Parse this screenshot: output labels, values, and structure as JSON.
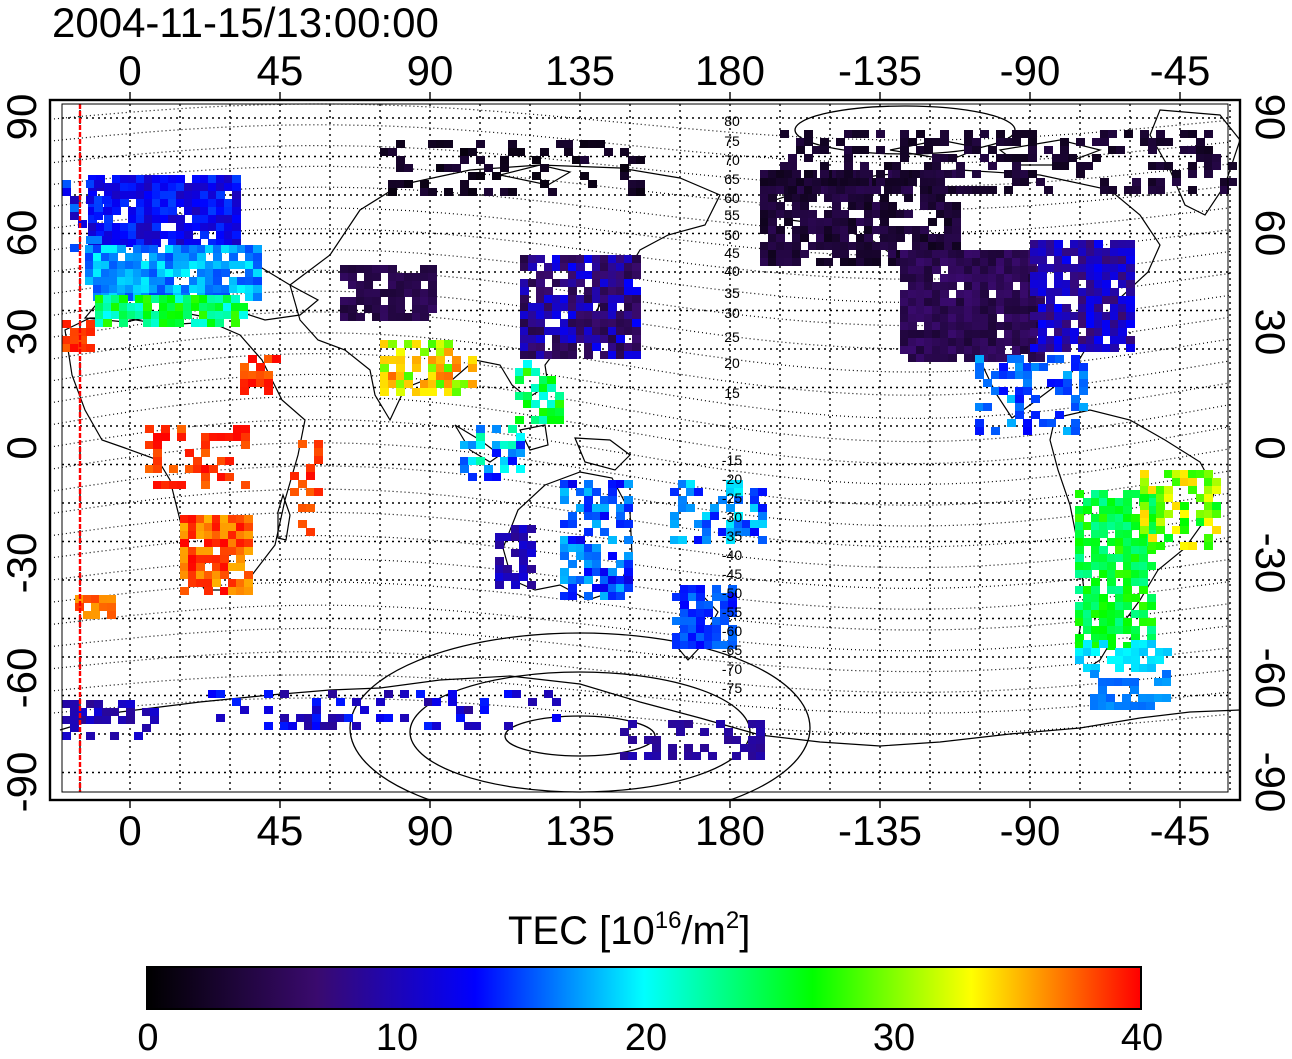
{
  "timestamp": "2004-11-15/13:00:00",
  "map": {
    "lon_ticks": [
      "0",
      "45",
      "90",
      "135",
      "180",
      "-135",
      "-90",
      "-45"
    ],
    "lat_ticks_left": [
      "90",
      "60",
      "30",
      "0",
      "-30",
      "-60",
      "-90"
    ],
    "lat_ticks_right": [
      "90",
      "60",
      "30",
      "0",
      "-30",
      "-60",
      "-90"
    ],
    "contour_labels_north": [
      "80",
      "75",
      "70",
      "65",
      "60",
      "55",
      "50",
      "45",
      "40",
      "35",
      "30",
      "25",
      "20",
      "15"
    ],
    "contour_labels_south": [
      "-15",
      "-20",
      "-25",
      "-30",
      "-35",
      "-40",
      "-45",
      "-50",
      "-55",
      "-60",
      "-65",
      "-70",
      "-75"
    ],
    "terminator_line_color": "#ff0000",
    "background_color": "#ffffff"
  },
  "colorbar": {
    "title_prefix": "TEC  [10",
    "title_exp1": "16",
    "title_mid": "/m",
    "title_exp2": "2",
    "title_suffix": "]",
    "tick_labels": [
      "0",
      "10",
      "20",
      "30",
      "40"
    ],
    "min": 0,
    "max": 40,
    "colors": [
      "#000000",
      "#3a0a6e",
      "#0000ff",
      "#00ffff",
      "#00ff00",
      "#ffff00",
      "#ff0000"
    ]
  }
}
